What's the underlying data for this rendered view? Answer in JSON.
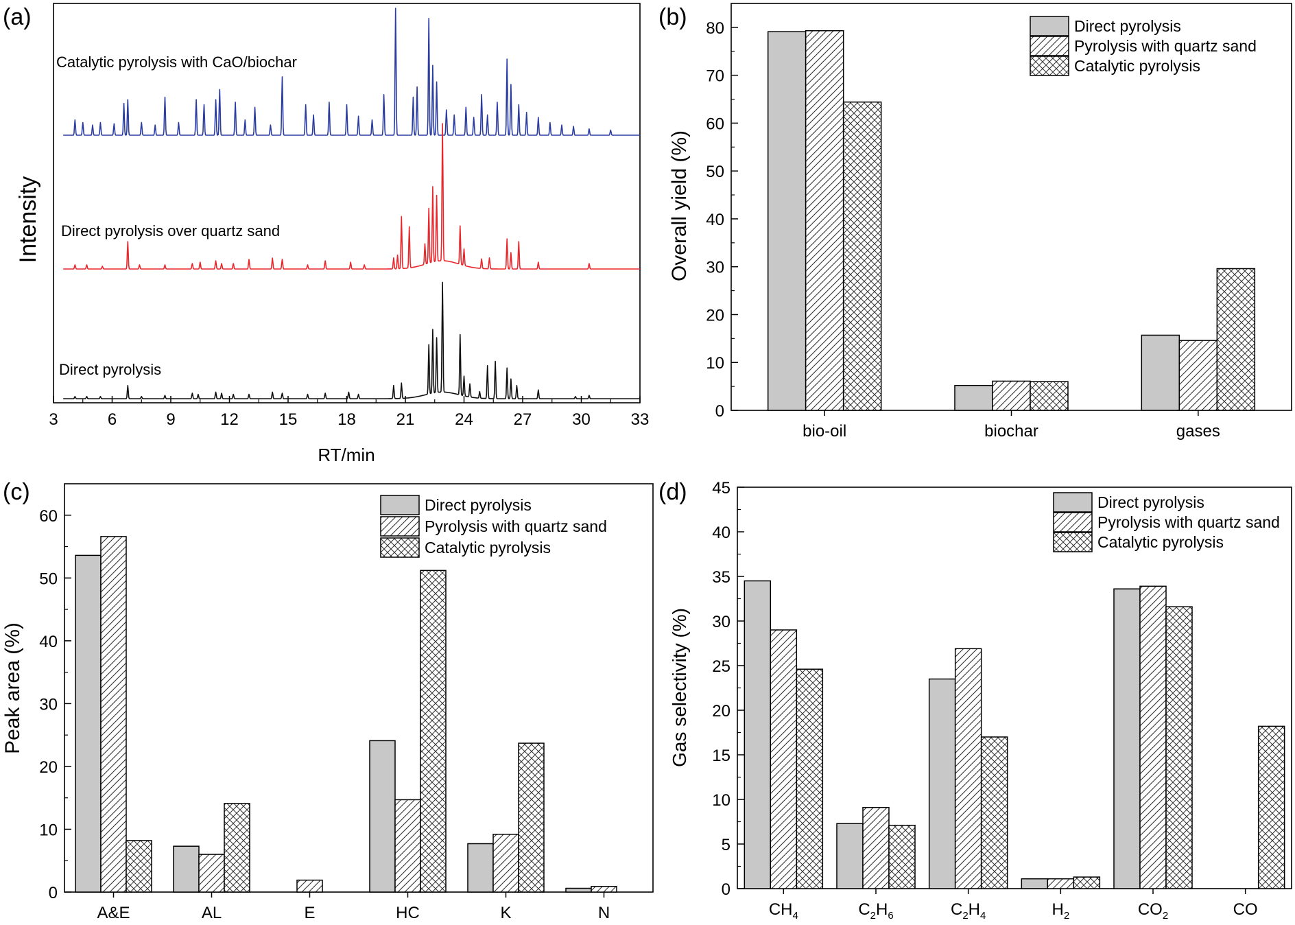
{
  "chart_data": [
    {
      "panel_label": "(a)",
      "type": "line",
      "xlabel": "RT/min",
      "ylabel": "Intensity",
      "xlim": [
        3,
        33
      ],
      "xticks": [
        "3",
        "6",
        "9",
        "12",
        "15",
        "18",
        "21",
        "24",
        "27",
        "30",
        "33"
      ],
      "grid": false,
      "series": [
        {
          "name": "Catalytic pyrolysis with CaO/biochar",
          "color": "#2b3da0",
          "peaks": [
            [
              4.1,
              0.12
            ],
            [
              4.5,
              0.1
            ],
            [
              5.0,
              0.08
            ],
            [
              5.4,
              0.1
            ],
            [
              6.1,
              0.09
            ],
            [
              6.6,
              0.25
            ],
            [
              6.8,
              0.28
            ],
            [
              7.5,
              0.1
            ],
            [
              8.2,
              0.08
            ],
            [
              8.7,
              0.3
            ],
            [
              9.4,
              0.1
            ],
            [
              10.3,
              0.28
            ],
            [
              10.7,
              0.24
            ],
            [
              11.3,
              0.28
            ],
            [
              11.5,
              0.36
            ],
            [
              12.3,
              0.26
            ],
            [
              12.8,
              0.12
            ],
            [
              13.3,
              0.22
            ],
            [
              14.1,
              0.08
            ],
            [
              14.7,
              0.46
            ],
            [
              15.9,
              0.24
            ],
            [
              16.3,
              0.16
            ],
            [
              17.1,
              0.26
            ],
            [
              18.0,
              0.24
            ],
            [
              18.6,
              0.15
            ],
            [
              19.3,
              0.12
            ],
            [
              19.9,
              0.32
            ],
            [
              20.5,
              1.0
            ],
            [
              21.4,
              0.3
            ],
            [
              21.6,
              0.38
            ],
            [
              22.2,
              0.92
            ],
            [
              22.4,
              0.55
            ],
            [
              22.6,
              0.42
            ],
            [
              23.1,
              0.2
            ],
            [
              23.5,
              0.16
            ],
            [
              24.1,
              0.22
            ],
            [
              24.5,
              0.14
            ],
            [
              24.9,
              0.32
            ],
            [
              25.2,
              0.16
            ],
            [
              25.7,
              0.26
            ],
            [
              26.2,
              0.6
            ],
            [
              26.4,
              0.4
            ],
            [
              26.8,
              0.24
            ],
            [
              27.2,
              0.18
            ],
            [
              27.8,
              0.14
            ],
            [
              28.4,
              0.1
            ],
            [
              29.0,
              0.08
            ],
            [
              29.6,
              0.07
            ],
            [
              30.4,
              0.05
            ],
            [
              31.5,
              0.04
            ]
          ]
        },
        {
          "name": "Direct pyrolysis over quartz sand",
          "color": "#e8262b",
          "peaks": [
            [
              4.1,
              0.03
            ],
            [
              4.7,
              0.03
            ],
            [
              5.5,
              0.02
            ],
            [
              6.8,
              0.2
            ],
            [
              7.4,
              0.03
            ],
            [
              8.7,
              0.03
            ],
            [
              10.1,
              0.04
            ],
            [
              10.5,
              0.05
            ],
            [
              11.3,
              0.06
            ],
            [
              11.6,
              0.04
            ],
            [
              12.2,
              0.04
            ],
            [
              13.0,
              0.07
            ],
            [
              14.2,
              0.08
            ],
            [
              14.7,
              0.07
            ],
            [
              16.0,
              0.03
            ],
            [
              16.9,
              0.06
            ],
            [
              18.2,
              0.05
            ],
            [
              18.9,
              0.03
            ],
            [
              20.4,
              0.08
            ],
            [
              20.6,
              0.1
            ],
            [
              20.8,
              0.38
            ],
            [
              21.2,
              0.3
            ],
            [
              22.0,
              0.15
            ],
            [
              22.2,
              0.4
            ],
            [
              22.4,
              0.55
            ],
            [
              22.6,
              0.48
            ],
            [
              22.9,
              1.0
            ],
            [
              23.8,
              0.28
            ],
            [
              24.0,
              0.12
            ],
            [
              24.9,
              0.07
            ],
            [
              25.3,
              0.08
            ],
            [
              26.2,
              0.22
            ],
            [
              26.4,
              0.12
            ],
            [
              26.8,
              0.2
            ],
            [
              27.8,
              0.05
            ],
            [
              30.4,
              0.04
            ]
          ]
        },
        {
          "name": "Direct pyrolysis",
          "color": "#111111",
          "peaks": [
            [
              4.1,
              0.02
            ],
            [
              4.7,
              0.02
            ],
            [
              5.4,
              0.02
            ],
            [
              6.8,
              0.12
            ],
            [
              7.5,
              0.02
            ],
            [
              8.7,
              0.03
            ],
            [
              10.1,
              0.05
            ],
            [
              10.4,
              0.04
            ],
            [
              11.3,
              0.06
            ],
            [
              11.6,
              0.05
            ],
            [
              12.2,
              0.04
            ],
            [
              13.0,
              0.04
            ],
            [
              14.2,
              0.06
            ],
            [
              14.7,
              0.05
            ],
            [
              16.0,
              0.04
            ],
            [
              16.9,
              0.05
            ],
            [
              18.1,
              0.06
            ],
            [
              18.6,
              0.04
            ],
            [
              20.4,
              0.12
            ],
            [
              20.8,
              0.14
            ],
            [
              22.2,
              0.45
            ],
            [
              22.4,
              0.58
            ],
            [
              22.6,
              0.5
            ],
            [
              22.9,
              1.0
            ],
            [
              23.8,
              0.55
            ],
            [
              24.0,
              0.18
            ],
            [
              24.3,
              0.12
            ],
            [
              24.8,
              0.06
            ],
            [
              25.2,
              0.3
            ],
            [
              25.6,
              0.34
            ],
            [
              26.2,
              0.28
            ],
            [
              26.4,
              0.18
            ],
            [
              26.7,
              0.12
            ],
            [
              27.8,
              0.08
            ],
            [
              29.7,
              0.02
            ],
            [
              30.4,
              0.03
            ]
          ]
        }
      ]
    },
    {
      "panel_label": "(b)",
      "type": "bar",
      "ylabel": "Overall yield (%)",
      "ylim": [
        0,
        85
      ],
      "yticks": [
        "0",
        "10",
        "20",
        "30",
        "40",
        "50",
        "60",
        "70",
        "80"
      ],
      "categories": [
        "bio-oil",
        "biochar",
        "gases"
      ],
      "legend_position": "top-right",
      "series": [
        {
          "name": "Direct pyrolysis",
          "fill": "solid-gray",
          "values": [
            79.1,
            5.2,
            15.7
          ]
        },
        {
          "name": "Pyrolysis with quartz sand",
          "fill": "diagonal-hatch",
          "values": [
            79.3,
            6.1,
            14.6
          ]
        },
        {
          "name": "Catalytic pyrolysis",
          "fill": "cross-hatch",
          "values": [
            64.4,
            6.0,
            29.6
          ]
        }
      ]
    },
    {
      "panel_label": "(c)",
      "type": "bar",
      "ylabel": "Peak area (%)",
      "ylim": [
        0,
        65
      ],
      "yticks": [
        "0",
        "10",
        "20",
        "30",
        "40",
        "50",
        "60"
      ],
      "categories": [
        "A&E",
        "AL",
        "E",
        "HC",
        "K",
        "N"
      ],
      "legend_position": "top-right",
      "series": [
        {
          "name": "Direct pyrolysis",
          "fill": "solid-gray",
          "values": [
            53.6,
            7.3,
            0,
            24.1,
            7.7,
            0.6
          ]
        },
        {
          "name": "Pyrolysis with quartz sand",
          "fill": "diagonal-hatch",
          "values": [
            56.6,
            6.0,
            1.9,
            14.7,
            9.2,
            0.9
          ]
        },
        {
          "name": "Catalytic pyrolysis",
          "fill": "cross-hatch",
          "values": [
            8.2,
            14.1,
            0,
            51.2,
            23.7,
            0
          ]
        }
      ]
    },
    {
      "panel_label": "(d)",
      "type": "bar",
      "ylabel": "Gas selectivity (%)",
      "ylim": [
        0,
        45
      ],
      "yticks": [
        "0",
        "5",
        "10",
        "15",
        "20",
        "25",
        "30",
        "35",
        "40",
        "45"
      ],
      "categories": [
        {
          "base": "CH",
          "sub": "4"
        },
        {
          "base": "C",
          "sub": "2",
          "base2": "H",
          "sub2": "6"
        },
        {
          "base": "C",
          "sub": "2",
          "base2": "H",
          "sub2": "4"
        },
        {
          "base": "H",
          "sub": "2"
        },
        {
          "base": "CO",
          "sub": "2"
        },
        {
          "base": "CO",
          "sub": ""
        }
      ],
      "legend_position": "top-right",
      "series": [
        {
          "name": "Direct pyrolysis",
          "fill": "solid-gray",
          "values": [
            34.5,
            7.3,
            23.5,
            1.1,
            33.6,
            0
          ]
        },
        {
          "name": "Pyrolysis with quartz sand",
          "fill": "diagonal-hatch",
          "values": [
            29.0,
            9.1,
            26.9,
            1.1,
            33.9,
            0
          ]
        },
        {
          "name": "Catalytic pyrolysis",
          "fill": "cross-hatch",
          "values": [
            24.6,
            7.1,
            17.0,
            1.3,
            31.6,
            18.2
          ]
        }
      ]
    }
  ]
}
